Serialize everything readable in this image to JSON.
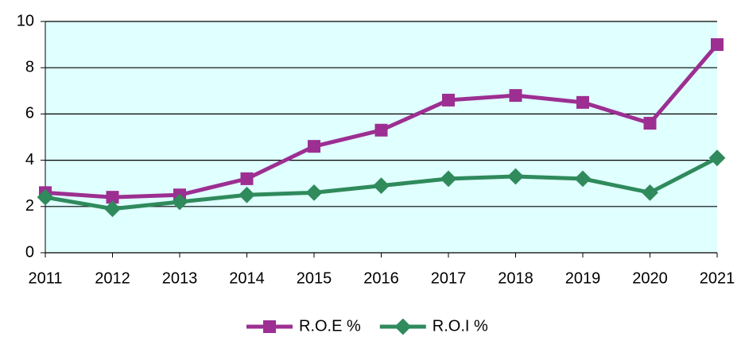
{
  "chart_data": {
    "type": "line",
    "categories": [
      "2011",
      "2012",
      "2013",
      "2014",
      "2015",
      "2016",
      "2017",
      "2018",
      "2019",
      "2020",
      "2021"
    ],
    "series": [
      {
        "name": "R.O.E %",
        "color": "#9c2f91",
        "marker": "square",
        "values": [
          2.6,
          2.4,
          2.5,
          3.2,
          4.6,
          5.3,
          6.6,
          6.8,
          6.5,
          5.6,
          9.0
        ]
      },
      {
        "name": "R.O.I %",
        "color": "#2f8a5c",
        "marker": "diamond",
        "values": [
          2.4,
          1.9,
          2.2,
          2.5,
          2.6,
          2.9,
          3.2,
          3.3,
          3.2,
          2.6,
          4.1
        ]
      }
    ],
    "ylim": [
      0,
      10
    ],
    "yticks": [
      0,
      2,
      4,
      6,
      8,
      10
    ],
    "grid": true,
    "plot_background": "#e0ffff",
    "legend": "bottom"
  }
}
